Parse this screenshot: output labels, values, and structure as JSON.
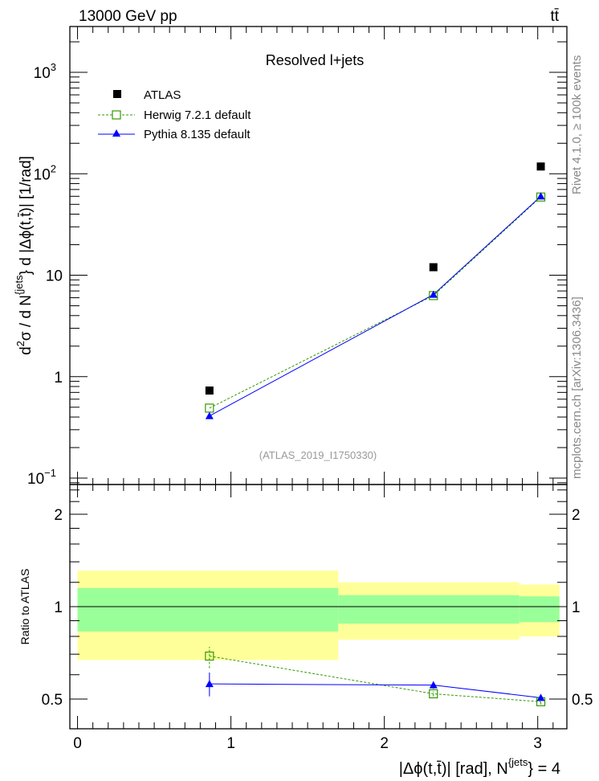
{
  "header": {
    "energy_label": "13000 GeV pp",
    "process_label": "tt̄"
  },
  "side_texts": {
    "rivet": "Rivet 4.1.0, ≥ 100k events",
    "mcplots": "mcplots.cern.ch [arXiv:1306.3436]"
  },
  "colors": {
    "atlas": "#000000",
    "herwig": "#339900",
    "pythia": "#0000ff",
    "band_inner": "#99ff99",
    "band_outer": "#ffff99",
    "watermark": "#999999"
  },
  "chart_data": [
    {
      "type": "line",
      "title": "Resolved l+jets",
      "watermark": "(ATLAS_2019_I1750330)",
      "ylabel_parts": [
        "d",
        "2",
        "σ / d N",
        "{jets",
        "} d |Δϕ(t,t̄)| [1/rad]"
      ],
      "yscale": "log",
      "ylim": [
        0.0865,
        2830
      ],
      "xlim": [
        -0.05,
        3.19
      ],
      "ytick_labels": [
        {
          "v": 1000,
          "base": "10",
          "exp": "3"
        },
        {
          "v": 100,
          "base": "10",
          "exp": "2"
        },
        {
          "v": 10,
          "base": "10",
          "exp": ""
        },
        {
          "v": 1,
          "base": "1",
          "exp": ""
        },
        {
          "v": 0.1,
          "base": "10",
          "exp": "−1"
        }
      ],
      "legend_position": "top-left",
      "series": [
        {
          "name": "ATLAS",
          "marker": "filled-square",
          "x": [
            0.86,
            2.32,
            3.02
          ],
          "y": [
            0.73,
            12.0,
            118
          ]
        },
        {
          "name": "Herwig 7.2.1 default",
          "marker": "open-square",
          "line": "dashed",
          "x": [
            0.86,
            2.32,
            3.02
          ],
          "y": [
            0.49,
            6.3,
            59
          ]
        },
        {
          "name": "Pythia 8.135 default",
          "marker": "triangle",
          "line": "solid",
          "x": [
            0.86,
            2.32,
            3.02
          ],
          "y": [
            0.41,
            6.45,
            60
          ]
        }
      ]
    },
    {
      "type": "line",
      "ylabel": "Ratio to ATLAS",
      "xlabel_parts": [
        "|Δϕ(t,t̄)| [rad], N",
        "{jets",
        "} = 4"
      ],
      "yscale": "log",
      "ylim": [
        0.4,
        2.5
      ],
      "xlim": [
        -0.05,
        3.19
      ],
      "xticks": [
        "0",
        "1",
        "2",
        "3"
      ],
      "yticks": [
        "0.5",
        "1",
        "2"
      ],
      "bands": [
        {
          "x": [
            0,
            1.7
          ],
          "outer": [
            0.67,
            1.31
          ],
          "inner": [
            0.83,
            1.15
          ]
        },
        {
          "x": [
            1.7,
            2.88
          ],
          "outer": [
            0.78,
            1.2
          ],
          "inner": [
            0.88,
            1.09
          ]
        },
        {
          "x": [
            2.88,
            3.1416
          ],
          "outer": [
            0.8,
            1.18
          ],
          "inner": [
            0.89,
            1.08
          ]
        }
      ],
      "series": [
        {
          "name": "Herwig 7.2.1 default",
          "x": [
            0.86,
            2.32,
            3.02
          ],
          "y": [
            0.69,
            0.52,
            0.49
          ],
          "err_lo": [
            0.63,
            0.51,
            0.48
          ],
          "err_hi": [
            0.74,
            0.53,
            0.5
          ]
        },
        {
          "name": "Pythia 8.135 default",
          "x": [
            0.86,
            2.32,
            3.02
          ],
          "y": [
            0.56,
            0.555,
            0.505
          ],
          "err_lo": [
            0.51,
            0.54,
            0.495
          ],
          "err_hi": [
            0.61,
            0.57,
            0.515
          ]
        }
      ]
    }
  ]
}
